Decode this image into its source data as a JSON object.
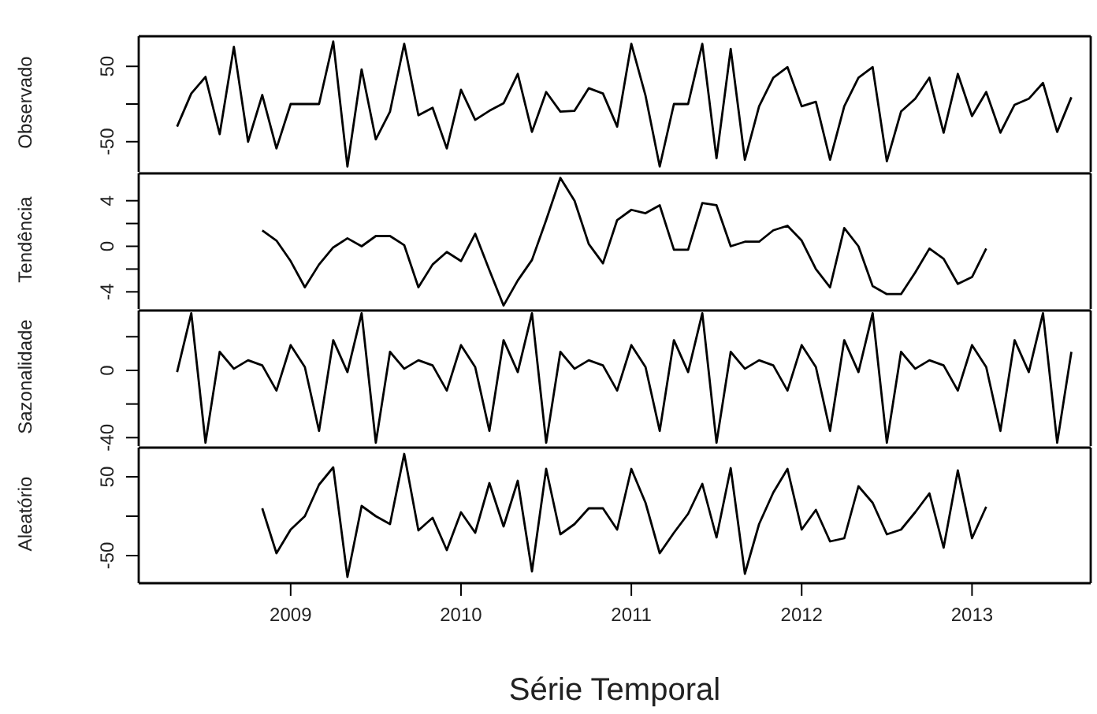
{
  "chart_data": [
    {
      "type": "line",
      "ylabel": "Observado",
      "color": "#000000",
      "tick_labels": "y",
      "x": [
        "2008-05",
        "2008-06",
        "2008-07",
        "2008-08",
        "2008-09",
        "2008-10",
        "2008-11",
        "2008-12",
        "2009-01",
        "2009-02",
        "2009-03",
        "2009-04",
        "2009-05",
        "2009-06",
        "2009-07",
        "2009-08",
        "2009-09",
        "2009-10",
        "2009-11",
        "2009-12",
        "2010-01",
        "2010-02",
        "2010-03",
        "2010-04",
        "2010-05",
        "2010-06",
        "2010-07",
        "2010-08",
        "2010-09",
        "2010-10",
        "2010-11",
        "2010-12",
        "2011-01",
        "2011-02",
        "2011-03",
        "2011-04",
        "2011-05",
        "2011-06",
        "2011-07",
        "2011-08",
        "2011-09",
        "2011-10",
        "2011-11",
        "2011-12",
        "2012-01",
        "2012-02",
        "2012-03",
        "2012-04",
        "2012-05",
        "2012-06",
        "2012-07",
        "2012-08",
        "2012-09",
        "2012-10",
        "2012-11",
        "2012-12",
        "2013-01",
        "2013-02",
        "2013-03",
        "2013-04",
        "2013-05",
        "2013-06",
        "2013-07",
        "2013-08"
      ],
      "values": [
        -30,
        14,
        36,
        -40,
        76,
        -50,
        12,
        -59,
        0,
        0,
        0,
        83,
        -83,
        46,
        -47,
        -10,
        80,
        -15,
        -5,
        -59,
        19,
        -21,
        -9,
        1,
        40,
        -37,
        16,
        -10,
        -9,
        21,
        14,
        -30,
        80,
        11,
        -83,
        0,
        0,
        80,
        -72,
        73,
        -74,
        -3,
        35,
        49,
        -3,
        3,
        -74,
        -3,
        35,
        49,
        -76,
        -10,
        7,
        35,
        -38,
        40,
        -16,
        16,
        -38,
        -1,
        7,
        28,
        -37,
        9
      ],
      "xlim": [
        "2008-02-10",
        "2013-09-12"
      ],
      "ylim": [
        -90,
        90
      ],
      "yticks": [
        -50,
        {
          "value": 0,
          "label": null
        },
        50
      ]
    },
    {
      "type": "line",
      "ylabel": "Tendência",
      "color": "#000000",
      "tick_labels": "y",
      "x": [
        "2008-11",
        "2008-12",
        "2009-01",
        "2009-02",
        "2009-03",
        "2009-04",
        "2009-05",
        "2009-06",
        "2009-07",
        "2009-08",
        "2009-09",
        "2009-10",
        "2009-11",
        "2009-12",
        "2010-01",
        "2010-02",
        "2010-03",
        "2010-04",
        "2010-05",
        "2010-06",
        "2010-07",
        "2010-08",
        "2010-09",
        "2010-10",
        "2010-11",
        "2010-12",
        "2011-01",
        "2011-02",
        "2011-03",
        "2011-04",
        "2011-05",
        "2011-06",
        "2011-07",
        "2011-08",
        "2011-09",
        "2011-10",
        "2011-11",
        "2011-12",
        "2012-01",
        "2012-02",
        "2012-03",
        "2012-04",
        "2012-05",
        "2012-06",
        "2012-07",
        "2012-08",
        "2012-09",
        "2012-10",
        "2012-11",
        "2012-12",
        "2013-01",
        "2013-02"
      ],
      "values": [
        1.4,
        0.5,
        -1.3,
        -3.6,
        -1.6,
        -0.1,
        0.7,
        0,
        0.9,
        0.9,
        0.1,
        -3.6,
        -1.6,
        -0.5,
        -1.3,
        1.1,
        -2.1,
        -5.2,
        -3.0,
        -1.2,
        2.3,
        6.0,
        4.0,
        0.2,
        -1.5,
        2.3,
        3.2,
        2.9,
        3.6,
        -0.3,
        -0.3,
        3.8,
        3.6,
        0,
        0.4,
        0.4,
        1.4,
        1.8,
        0.5,
        -2.0,
        -3.6,
        1.6,
        0,
        -3.5,
        -4.2,
        -4.2,
        -2.3,
        -0.2,
        -1.1,
        -3.3,
        -2.7,
        -0.2
      ],
      "xlim": [
        "2008-02-10",
        "2013-09-12"
      ],
      "ylim": [
        -5.5,
        6.4
      ],
      "yticks": [
        -4,
        {
          "value": -2,
          "label": null
        },
        0,
        {
          "value": 2,
          "label": null
        },
        4
      ]
    },
    {
      "type": "line",
      "ylabel": "Sazonalidade",
      "color": "#000000",
      "tick_labels": "y",
      "x": [
        "2008-05",
        "2008-06",
        "2008-07",
        "2008-08",
        "2008-09",
        "2008-10",
        "2008-11",
        "2008-12",
        "2009-01",
        "2009-02",
        "2009-03",
        "2009-04",
        "2009-05",
        "2009-06",
        "2009-07",
        "2009-08",
        "2009-09",
        "2009-10",
        "2009-11",
        "2009-12",
        "2010-01",
        "2010-02",
        "2010-03",
        "2010-04",
        "2010-05",
        "2010-06",
        "2010-07",
        "2010-08",
        "2010-09",
        "2010-10",
        "2010-11",
        "2010-12",
        "2011-01",
        "2011-02",
        "2011-03",
        "2011-04",
        "2011-05",
        "2011-06",
        "2011-07",
        "2011-08",
        "2011-09",
        "2011-10",
        "2011-11",
        "2011-12",
        "2012-01",
        "2012-02",
        "2012-03",
        "2012-04",
        "2012-05",
        "2012-06",
        "2012-07",
        "2012-08",
        "2012-09",
        "2012-10",
        "2012-11",
        "2012-12",
        "2013-01",
        "2013-02",
        "2013-03",
        "2013-04",
        "2013-05",
        "2013-06",
        "2013-07",
        "2013-08"
      ],
      "values": [
        -1,
        34,
        -43,
        11,
        1,
        6,
        3,
        -12,
        15,
        2,
        -36,
        18,
        -1,
        34,
        -43,
        11,
        1,
        6,
        3,
        -12,
        15,
        2,
        -36,
        18,
        -1,
        34,
        -43,
        11,
        1,
        6,
        3,
        -12,
        15,
        2,
        -36,
        18,
        -1,
        34,
        -43,
        11,
        1,
        6,
        3,
        -12,
        15,
        2,
        -36,
        18,
        -1,
        34,
        -43,
        11,
        1,
        6,
        3,
        -12,
        15,
        2,
        -36,
        18,
        -1,
        34,
        -43,
        11
      ],
      "xlim": [
        "2008-02-10",
        "2013-09-12"
      ],
      "ylim": [
        -45,
        35.6
      ],
      "yticks": [
        -40,
        {
          "value": -20,
          "label": null
        },
        0,
        {
          "value": 20,
          "label": null
        }
      ]
    },
    {
      "type": "line",
      "ylabel": "Aleatório",
      "xlabel": "Série Temporal",
      "color": "#000000",
      "x": [
        "2008-11",
        "2008-12",
        "2009-01",
        "2009-02",
        "2009-03",
        "2009-04",
        "2009-05",
        "2009-06",
        "2009-07",
        "2009-08",
        "2009-09",
        "2009-10",
        "2009-11",
        "2009-12",
        "2010-01",
        "2010-02",
        "2010-03",
        "2010-04",
        "2010-05",
        "2010-06",
        "2010-07",
        "2010-08",
        "2010-09",
        "2010-10",
        "2010-11",
        "2010-12",
        "2011-01",
        "2011-02",
        "2011-03",
        "2011-04",
        "2011-05",
        "2011-06",
        "2011-07",
        "2011-08",
        "2011-09",
        "2011-10",
        "2011-11",
        "2011-12",
        "2012-01",
        "2012-02",
        "2012-03",
        "2012-04",
        "2012-05",
        "2012-06",
        "2012-07",
        "2012-08",
        "2012-09",
        "2012-10",
        "2012-11",
        "2012-12",
        "2013-01",
        "2013-02"
      ],
      "values": [
        10,
        -47,
        -17,
        0,
        40,
        62,
        -77,
        13,
        0,
        -10,
        79,
        -18,
        -2,
        -43,
        5,
        -21,
        42,
        -13,
        45,
        -70,
        60,
        -23,
        -10,
        10,
        10,
        -17,
        60,
        17,
        -47,
        -21,
        3,
        41,
        -27,
        61,
        -73,
        -10,
        30,
        60,
        -17,
        8,
        -32,
        -28,
        38,
        17,
        -23,
        -17,
        5,
        29,
        -40,
        58,
        -28,
        12
      ],
      "xlim": [
        "2008-02-10",
        "2013-09-12"
      ],
      "xticks": [
        "2009",
        "2010",
        "2011",
        "2012",
        "2013"
      ],
      "ylim": [
        -85,
        87
      ],
      "yticks": [
        -50,
        {
          "value": 0,
          "label": null
        },
        50
      ]
    }
  ]
}
